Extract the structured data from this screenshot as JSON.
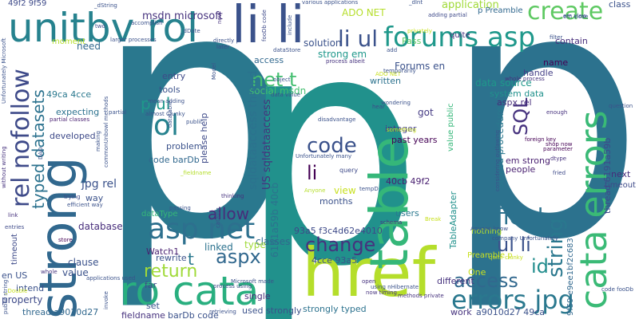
{
  "words": [
    {
      "text": "p",
      "color": "#2a788e"
    },
    {
      "text": "p",
      "color": "#2c728e"
    },
    {
      "text": "p",
      "color": "#21918c"
    },
    {
      "text": "href",
      "color": "#b5de2b"
    },
    {
      "text": "strong",
      "color": "#31688e"
    },
    {
      "text": "table",
      "color": "#35b779"
    },
    {
      "text": "cata errors",
      "color": "#3aba76"
    },
    {
      "text": "li li",
      "color": "#3b528b"
    },
    {
      "text": "unitbv rol",
      "color": "#26828e"
    },
    {
      "text": "ro cata",
      "color": "#29af7f"
    },
    {
      "text": "rel nofollow",
      "color": "#3e4a89"
    },
    {
      "text": "forums asp",
      "color": "#1f988b"
    },
    {
      "text": "asp net",
      "color": "#2d708e"
    },
    {
      "text": "errors jpg",
      "color": "#2a788e"
    },
    {
      "text": "create",
      "color": "#5ec962"
    },
    {
      "text": "code",
      "color": "#3b528b"
    },
    {
      "text": "change",
      "color": "#46327e"
    },
    {
      "text": "access",
      "color": "#31688e"
    },
    {
      "text": "field",
      "color": "#2c728e"
    },
    {
      "text": "string",
      "color": "#2a788e"
    },
    {
      "text": "typed datasets",
      "color": "#2c728e"
    },
    {
      "text": "return",
      "color": "#a0da39"
    },
    {
      "text": "aspx",
      "color": "#31688e"
    },
    {
      "text": "net t",
      "color": "#44bf70"
    },
    {
      "text": "ol",
      "color": "#26828e"
    },
    {
      "text": "li ul",
      "color": "#3b528b"
    },
    {
      "text": "ul li",
      "color": "#3b528b"
    },
    {
      "text": "id",
      "color": "#228d8d"
    },
    {
      "text": "SQL",
      "color": "#46327e"
    },
    {
      "text": "p ul",
      "color": "#1f988b"
    },
    {
      "text": "allow",
      "color": "#472d7b"
    },
    {
      "text": "li",
      "color": "#440154"
    },
    {
      "text": "t",
      "color": "#2a788e"
    },
    {
      "text": "Forums en",
      "color": "#3b528b"
    },
    {
      "text": "msdn microsoft",
      "color": "#46327e"
    },
    {
      "text": "application",
      "color": "#a0da39"
    },
    {
      "text": "ADO NET",
      "color": "#b5de2b"
    },
    {
      "text": "strong em",
      "color": "#1f988b"
    },
    {
      "text": "social msdn",
      "color": "#44bf70"
    },
    {
      "text": "sqldataaccess thread",
      "color": "#2c728e"
    },
    {
      "text": "US sqldataaccess",
      "color": "#46327e"
    },
    {
      "text": "database",
      "color": "#472d7b"
    },
    {
      "text": "jpg rel",
      "color": "#3b528b"
    },
    {
      "text": "data source",
      "color": "#1f988b"
    },
    {
      "text": "system data",
      "color": "#21918c"
    },
    {
      "text": "aspx rel",
      "color": "#472d7b"
    },
    {
      "text": "stored procedure",
      "color": "#2a788e"
    },
    {
      "text": "thread 6191a59b",
      "color": "#3e4a89"
    },
    {
      "text": "em strong",
      "color": "#481f70"
    },
    {
      "text": "people",
      "color": "#481f70"
    },
    {
      "text": "solution",
      "color": "#3b528b"
    },
    {
      "text": "need",
      "color": "#31688e"
    },
    {
      "text": "integer",
      "color": "#433e85"
    },
    {
      "text": "past years",
      "color": "#440154"
    },
    {
      "text": "got",
      "color": "#443a83"
    },
    {
      "text": "view",
      "color": "#c8e020"
    },
    {
      "text": "users",
      "color": "#2a788e"
    },
    {
      "text": "months",
      "color": "#3b528b"
    },
    {
      "text": "40cb 49f2",
      "color": "#481f70"
    },
    {
      "text": "6191a59b 40cb",
      "color": "#2c728e"
    },
    {
      "text": "93a5 f3c4d62e4010",
      "color": "#3e4a89"
    },
    {
      "text": "4cce 93a5",
      "color": "#3b528b"
    },
    {
      "text": "TableAdapter",
      "color": "#21918c"
    },
    {
      "text": "classes",
      "color": "#31688e"
    },
    {
      "text": "linked",
      "color": "#2c728e"
    },
    {
      "text": "Watch1",
      "color": "#481f70"
    },
    {
      "text": "rewrite",
      "color": "#3b528b"
    },
    {
      "text": "clause",
      "color": "#3b528b"
    },
    {
      "text": "value",
      "color": "#3b528b"
    },
    {
      "text": "property",
      "color": "#3e4a89"
    },
    {
      "text": "intend",
      "color": "#3b528b"
    },
    {
      "text": "thread a9010d27",
      "color": "#31688e"
    },
    {
      "text": "set",
      "color": "#3b528b"
    },
    {
      "text": "fieldname",
      "color": "#46327e"
    },
    {
      "text": "barDb code",
      "color": "#3b528b"
    },
    {
      "text": "single",
      "color": "#472d7b"
    },
    {
      "text": "strongly typed",
      "color": "#2c728e"
    },
    {
      "text": "used strongly",
      "color": "#3b528b"
    },
    {
      "text": "work",
      "color": "#46327e"
    },
    {
      "text": "a9010d27 49ca",
      "color": "#3b528b"
    },
    {
      "text": "different",
      "color": "#46327e"
    },
    {
      "text": "One",
      "color": "#c8e020"
    },
    {
      "text": "problem",
      "color": "#3b528b"
    },
    {
      "text": "code barDb",
      "color": "#31688e"
    },
    {
      "text": "entry",
      "color": "#3e4a89"
    },
    {
      "text": "please help",
      "color": "#3e4a89"
    },
    {
      "text": "tools",
      "color": "#3b528b"
    },
    {
      "text": "developed",
      "color": "#3e4a89"
    },
    {
      "text": "expecting",
      "color": "#2c728e"
    },
    {
      "text": "49ca 4cce",
      "color": "#2a788e"
    },
    {
      "text": "49f2 9f59",
      "color": "#3e4a89"
    },
    {
      "text": "moment",
      "color": "#b5de2b"
    },
    {
      "text": "handle",
      "color": "#433e85"
    },
    {
      "text": "name",
      "color": "#440154"
    },
    {
      "text": "contain",
      "color": "#472d7b"
    },
    {
      "text": "quite",
      "color": "#46327e"
    },
    {
      "text": "class",
      "color": "#3b528b"
    },
    {
      "text": "p Preamble",
      "color": "#31688e"
    },
    {
      "text": "written",
      "color": "#2c728e"
    },
    {
      "text": "Pass",
      "color": "#5ec962"
    },
    {
      "text": "dataType",
      "color": "#35b779"
    },
    {
      "text": "way",
      "color": "#3b528b"
    },
    {
      "text": "type",
      "color": "#a0da39"
    },
    {
      "text": "nothing",
      "color": "#b5de2b"
    },
    {
      "text": "access",
      "color": "#31688e"
    },
    {
      "text": "value public",
      "color": "#35b779"
    },
    {
      "text": "timeout",
      "color": "#3e4a89"
    },
    {
      "text": "en US",
      "color": "#3b528b"
    },
    {
      "text": "next",
      "color": "#472d7b"
    },
    {
      "text": "timeout methods",
      "color": "#3e4a89"
    },
    {
      "text": "query",
      "color": "#3e4a89"
    },
    {
      "text": "far",
      "color": "#3e4a89"
    },
    {
      "text": "Preamble p",
      "color": "#c8e020"
    },
    {
      "text": "9f59 e9ee1bf2c683",
      "color": "#31688e"
    },
    {
      "text": "larger processes",
      "color": "#3b528b"
    },
    {
      "text": "partial classes",
      "color": "#481f70"
    },
    {
      "text": "whole process",
      "color": "#46327e"
    },
    {
      "text": "foreign key",
      "color": "#440154"
    },
    {
      "text": "Anyone know",
      "color": "#3b528b"
    },
    {
      "text": "entries",
      "color": "#3e4a89"
    },
    {
      "text": "Unfortunately many",
      "color": "#3b528b"
    },
    {
      "text": "mean adding",
      "color": "#3b528b"
    },
    {
      "text": "passing",
      "color": "#3b528b"
    },
    {
      "text": "thinking",
      "color": "#46327e"
    },
    {
      "text": "schema",
      "color": "#46327e"
    },
    {
      "text": "Break",
      "color": "#c8e020"
    },
    {
      "text": "retrieving",
      "color": "#3b528b"
    },
    {
      "text": "open",
      "color": "#46327e"
    },
    {
      "text": "now timing",
      "color": "#46327e"
    },
    {
      "text": "code fooDb",
      "color": "#3b528b"
    },
    {
      "text": "Microsoft made",
      "color": "#3b528b"
    },
    {
      "text": "methods private",
      "color": "#46327e"
    },
    {
      "text": "_dString",
      "color": "#3b528b"
    },
    {
      "text": "applications used",
      "color": "#3b528b"
    },
    {
      "text": "quite clunky",
      "color": "#c8e020"
    },
    {
      "text": "shop now",
      "color": "#440154"
    },
    {
      "text": "dtype",
      "color": "#46327e"
    },
    {
      "text": "fried",
      "color": "#3e4a89"
    },
    {
      "text": "question",
      "color": "#3b528b"
    },
    {
      "text": "enough",
      "color": "#46327e"
    },
    {
      "text": "parameter",
      "color": "#440154"
    },
    {
      "text": "something",
      "color": "#c8e020"
    },
    {
      "text": "wondering",
      "color": "#3b528b"
    },
    {
      "text": "disadvantage",
      "color": "#3b528b"
    },
    {
      "text": "process albeit",
      "color": "#46327e"
    },
    {
      "text": "ADO NET",
      "color": "#c8e020"
    },
    {
      "text": "adding partial",
      "color": "#3e4a89"
    },
    {
      "text": "various applications",
      "color": "#3b528b"
    },
    {
      "text": "em close",
      "color": "#3b528b"
    },
    {
      "text": "link",
      "color": "#46327e"
    },
    {
      "text": "store",
      "color": "#440154"
    },
    {
      "text": "temporarily",
      "color": "#3b528b"
    },
    {
      "text": "public string",
      "color": "#3b528b"
    },
    {
      "text": "Model",
      "color": "#3b528b"
    },
    {
      "text": "tempD",
      "color": "#3b528b"
    },
    {
      "text": "hear",
      "color": "#3e4a89"
    },
    {
      "text": "without writing",
      "color": "#46327e"
    },
    {
      "text": "efficient way",
      "color": "#3b528b"
    },
    {
      "text": "trying",
      "color": "#3e4a89"
    },
    {
      "text": "invoke",
      "color": "#3b528b"
    },
    {
      "text": "_Double",
      "color": "#c8e020"
    },
    {
      "text": "whole",
      "color": "#46327e"
    },
    {
      "text": "process using",
      "color": "#3e4a89"
    },
    {
      "text": "using nHibernate",
      "color": "#3b528b"
    },
    {
      "text": "Unfortunately Microsoft",
      "color": "#3b528b"
    },
    {
      "text": "dataStore",
      "color": "#3b528b"
    },
    {
      "text": "two",
      "color": "#3e4a89"
    },
    {
      "text": "include",
      "color": "#3b528b"
    },
    {
      "text": "object",
      "color": "#3b528b"
    },
    {
      "text": "_dlnt",
      "color": "#3b528b"
    },
    {
      "text": "fooDb code",
      "color": "#3e4a89"
    },
    {
      "text": "directly p",
      "color": "#3b528b"
    },
    {
      "text": "later",
      "color": "#3e4a89"
    },
    {
      "text": "new",
      "color": "#46327e"
    },
    {
      "text": "em view",
      "color": "#3b528b"
    },
    {
      "text": "privately",
      "color": "#c8e020"
    },
    {
      "text": "filter",
      "color": "#3b528b"
    },
    {
      "text": "considering outlawing",
      "color": "#3b528b"
    },
    {
      "text": "datatable",
      "color": "#3b528b"
    },
    {
      "text": "catalog",
      "color": "#3b528b"
    },
    {
      "text": "company Unfortunately",
      "color": "#3b528b"
    },
    {
      "text": "Anyone",
      "color": "#b5de2b"
    },
    {
      "text": "_fieldname",
      "color": "#b5de2b"
    },
    {
      "text": "accomplish",
      "color": "#3b528b"
    },
    {
      "text": "_dDate",
      "color": "#3b528b"
    },
    {
      "text": "partial",
      "color": "#3b528b"
    },
    {
      "text": "data value",
      "color": "#3b528b"
    },
    {
      "text": "public",
      "color": "#3b528b"
    },
    {
      "text": "making",
      "color": "#3b528b"
    },
    {
      "text": "commonUnbowl methods",
      "color": "#3b528b"
    },
    {
      "text": "DAO",
      "color": "#3b528b"
    },
    {
      "text": "almost Clunky",
      "color": "#3b528b"
    },
    {
      "text": "add",
      "color": "#3b528b"
    }
  ]
}
